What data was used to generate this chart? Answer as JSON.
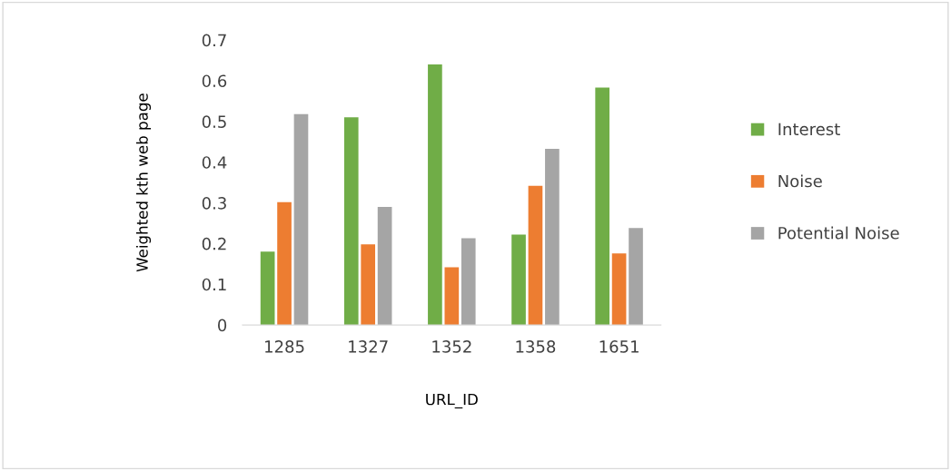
{
  "chart_data": {
    "type": "bar",
    "xlabel": "URL_ID",
    "ylabel": "Weighted kth web page",
    "categories": [
      "1285",
      "1327",
      "1352",
      "1358",
      "1651"
    ],
    "series": [
      {
        "name": "Interest",
        "color": "#70ad47",
        "values": [
          0.18,
          0.51,
          0.64,
          0.222,
          0.583
        ]
      },
      {
        "name": "Noise",
        "color": "#ed7d31",
        "values": [
          0.302,
          0.198,
          0.142,
          0.342,
          0.176
        ]
      },
      {
        "name": "Potential Noise",
        "color": "#a5a5a5",
        "values": [
          0.518,
          0.29,
          0.213,
          0.433,
          0.238
        ]
      }
    ],
    "ylim": [
      0,
      0.7
    ],
    "yticks": [
      0,
      0.1,
      0.2,
      0.3,
      0.4,
      0.5,
      0.6,
      0.7
    ],
    "grid": false,
    "legend": "right"
  }
}
